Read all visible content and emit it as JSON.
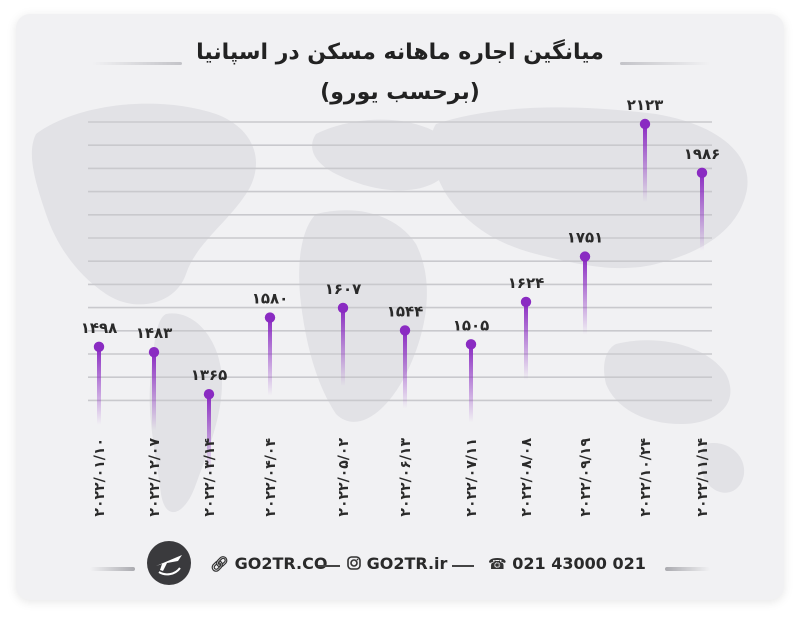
{
  "chart_data": {
    "type": "lollipop",
    "title_line1": "میانگین اجاره ماهانه مسکن در اسپانیا",
    "title_line2": "(برحسب یورو)",
    "categories": [
      "۲۰۲۲/۰۱/۱۰",
      "۲۰۲۲/۰۲/۰۷",
      "۲۰۲۲/۰۳/۱۴",
      "۲۰۲۲/۰۴/۰۴",
      "۲۰۲۲/۰۵/۰۲",
      "۲۰۲۲/۰۶/۱۳",
      "۲۰۲۲/۰۷/۱۱",
      "۲۰۲۲/۰۸/۰۸",
      "۲۰۲۲/۰۹/۱۹",
      "۲۰۲۲/۱۰/۲۴",
      "۲۰۲۲/۱۱/۱۴"
    ],
    "values": [
      1498,
      1483,
      1365,
      1580,
      1607,
      1544,
      1505,
      1624,
      1751,
      2123,
      1986
    ],
    "value_labels": [
      "۱۴۹۸",
      "۱۴۸۳",
      "۱۳۶۵",
      "۱۵۸۰",
      "۱۶۰۷",
      "۱۵۴۴",
      "۱۵۰۵",
      "۱۶۲۴",
      "۱۷۵۱",
      "۲۱۲۳",
      "۱۹۸۶"
    ],
    "grid": true,
    "colors": {
      "marker": "#8a2bc2",
      "stem_top": "#8a2bc2",
      "grid": "#c9c9cd"
    }
  },
  "footer": {
    "website": "GO2TR.CO",
    "instagram": "GO2TR.ir",
    "phone": "021 43000 021",
    "icons": [
      "link-icon",
      "instagram-icon",
      "phone-icon",
      "plane-logo-icon"
    ]
  }
}
